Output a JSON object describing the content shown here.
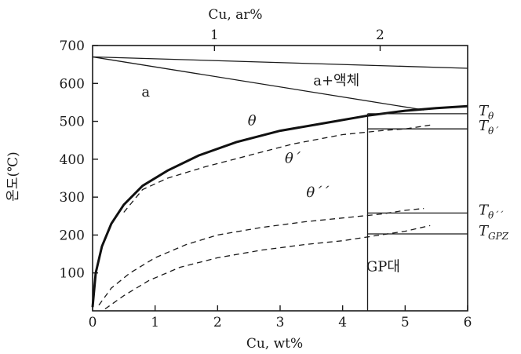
{
  "chart_data": {
    "type": "line",
    "xlabel": "Cu, wt%",
    "xlabel_top": "Cu, ar%",
    "ylabel": "온도(℃)",
    "xlim": [
      0,
      6
    ],
    "ylim": [
      0,
      700
    ],
    "x_ticks": [
      0,
      1,
      2,
      3,
      4,
      5,
      6
    ],
    "y_ticks": [
      100,
      200,
      300,
      400,
      500,
      600,
      700
    ],
    "top_ticks": [
      {
        "label": "1",
        "wt": 1.95
      },
      {
        "label": "2",
        "wt": 4.6
      }
    ],
    "grid": false,
    "series": [
      {
        "key": "liquidus_upper",
        "style": "thin",
        "points": [
          [
            0,
            670
          ],
          [
            6,
            640
          ]
        ]
      },
      {
        "key": "liquidus_lower",
        "style": "thin",
        "points": [
          [
            0,
            670
          ],
          [
            5.3,
            530
          ]
        ]
      },
      {
        "key": "theta_solvus",
        "style": "thick",
        "points": [
          [
            0,
            10
          ],
          [
            0.05,
            100
          ],
          [
            0.15,
            170
          ],
          [
            0.3,
            230
          ],
          [
            0.5,
            280
          ],
          [
            0.8,
            330
          ],
          [
            1.2,
            370
          ],
          [
            1.7,
            410
          ],
          [
            2.3,
            445
          ],
          [
            3.0,
            475
          ],
          [
            3.7,
            495
          ],
          [
            4.4,
            515
          ],
          [
            5.0,
            528
          ],
          [
            5.5,
            535
          ],
          [
            6.0,
            540
          ]
        ]
      },
      {
        "key": "theta_prime_solvus",
        "style": "dashed",
        "points": [
          [
            0.5,
            260
          ],
          [
            0.8,
            320
          ],
          [
            1.2,
            350
          ],
          [
            1.8,
            380
          ],
          [
            2.5,
            410
          ],
          [
            3.2,
            440
          ],
          [
            4.0,
            465
          ],
          [
            4.6,
            475
          ],
          [
            5.0,
            480
          ],
          [
            5.4,
            490
          ]
        ]
      },
      {
        "key": "theta_dprime_solvus",
        "style": "dashed",
        "points": [
          [
            0.1,
            15
          ],
          [
            0.3,
            60
          ],
          [
            0.6,
            100
          ],
          [
            1.0,
            140
          ],
          [
            1.5,
            175
          ],
          [
            2.0,
            200
          ],
          [
            2.7,
            220
          ],
          [
            3.4,
            235
          ],
          [
            4.0,
            245
          ],
          [
            4.6,
            255
          ],
          [
            5.0,
            265
          ],
          [
            5.3,
            270
          ]
        ]
      },
      {
        "key": "gpz_solvus",
        "style": "dashed",
        "points": [
          [
            0.2,
            5
          ],
          [
            0.5,
            40
          ],
          [
            0.9,
            80
          ],
          [
            1.4,
            115
          ],
          [
            2.0,
            140
          ],
          [
            2.7,
            160
          ],
          [
            3.4,
            175
          ],
          [
            4.0,
            185
          ],
          [
            4.6,
            200
          ],
          [
            5.0,
            210
          ],
          [
            5.4,
            225
          ]
        ]
      },
      {
        "key": "composition_line",
        "style": "thin",
        "points": [
          [
            4.4,
            0
          ],
          [
            4.4,
            520
          ]
        ]
      },
      {
        "key": "t_theta_line",
        "style": "thin",
        "points": [
          [
            4.4,
            520
          ],
          [
            6,
            520
          ]
        ]
      },
      {
        "key": "t_theta_prime_line",
        "style": "thin",
        "points": [
          [
            4.4,
            480
          ],
          [
            6,
            480
          ]
        ]
      },
      {
        "key": "t_theta_dprime_line",
        "style": "thin",
        "points": [
          [
            4.4,
            258
          ],
          [
            6,
            258
          ]
        ]
      },
      {
        "key": "t_gpz_line",
        "style": "thin",
        "points": [
          [
            4.4,
            203
          ],
          [
            6,
            203
          ]
        ]
      }
    ],
    "annotations": [
      {
        "key": "alpha",
        "text": "a",
        "x": 0.85,
        "y": 565
      },
      {
        "key": "alpha_liquid",
        "text": "a+액체",
        "x": 3.9,
        "y": 595
      },
      {
        "key": "theta",
        "text": "θ",
        "x": 2.55,
        "y": 490,
        "italic": true
      },
      {
        "key": "theta_prime",
        "text": "θ´",
        "x": 3.2,
        "y": 390,
        "italic": true
      },
      {
        "key": "theta_dprime",
        "text": "θ´´",
        "x": 3.6,
        "y": 300,
        "italic": true
      },
      {
        "key": "gp_zone",
        "text": "GP대",
        "x": 4.65,
        "y": 105
      }
    ],
    "right_labels": [
      {
        "key": "t_theta",
        "main": "T",
        "sub": "θ",
        "y": 520
      },
      {
        "key": "t_theta_prime",
        "main": "T",
        "sub": "θ´",
        "y": 480
      },
      {
        "key": "t_theta_dprime",
        "main": "T",
        "sub": "θ´´",
        "y": 258
      },
      {
        "key": "t_gpz",
        "main": "T",
        "sub": "GPZ",
        "y": 203
      }
    ]
  }
}
